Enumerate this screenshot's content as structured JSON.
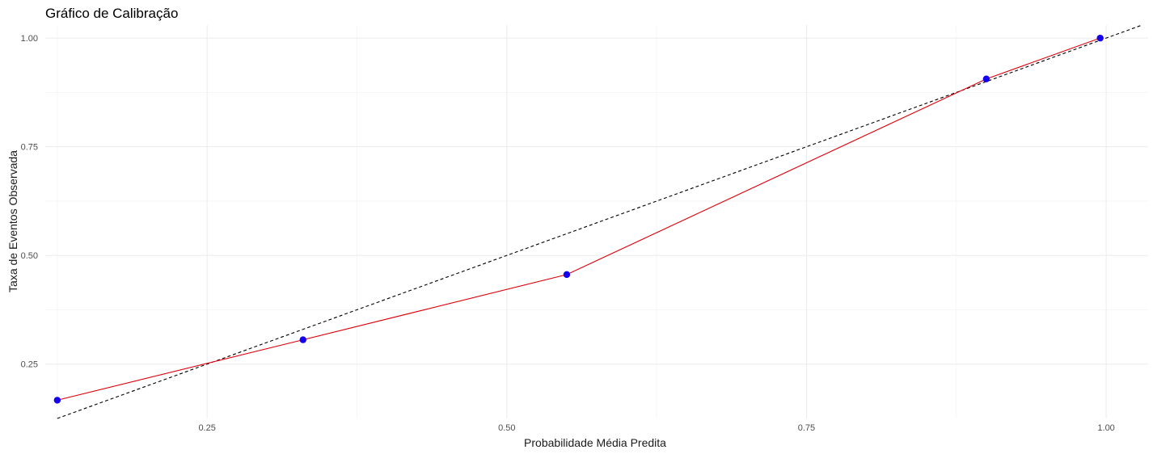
{
  "chart_data": {
    "type": "line",
    "title": "Gráfico de Calibração",
    "xlabel": "Probabilidade Média Predita",
    "ylabel": "Taxa de Eventos Observada",
    "xlim": [
      0.115,
      1.035
    ],
    "ylim": [
      0.125,
      1.03
    ],
    "x_ticks": [
      0.25,
      0.5,
      0.75,
      1.0
    ],
    "x_tick_labels": [
      "0.25",
      "0.50",
      "0.75",
      "1.00"
    ],
    "y_ticks": [
      0.25,
      0.5,
      0.75,
      1.0
    ],
    "y_tick_labels": [
      "0.25",
      "0.50",
      "0.75",
      "1.00"
    ],
    "grid": true,
    "series": [
      {
        "style": "solid line with points",
        "line_color": "#e0000b",
        "point_color": "#1400ee",
        "x": [
          0.125,
          0.33,
          0.55,
          0.9,
          0.995
        ],
        "y": [
          0.167,
          0.306,
          0.456,
          0.906,
          1.0
        ]
      }
    ],
    "reference_line": {
      "style": "dashed",
      "color": "#000000",
      "slope": 1,
      "intercept": 0
    }
  }
}
